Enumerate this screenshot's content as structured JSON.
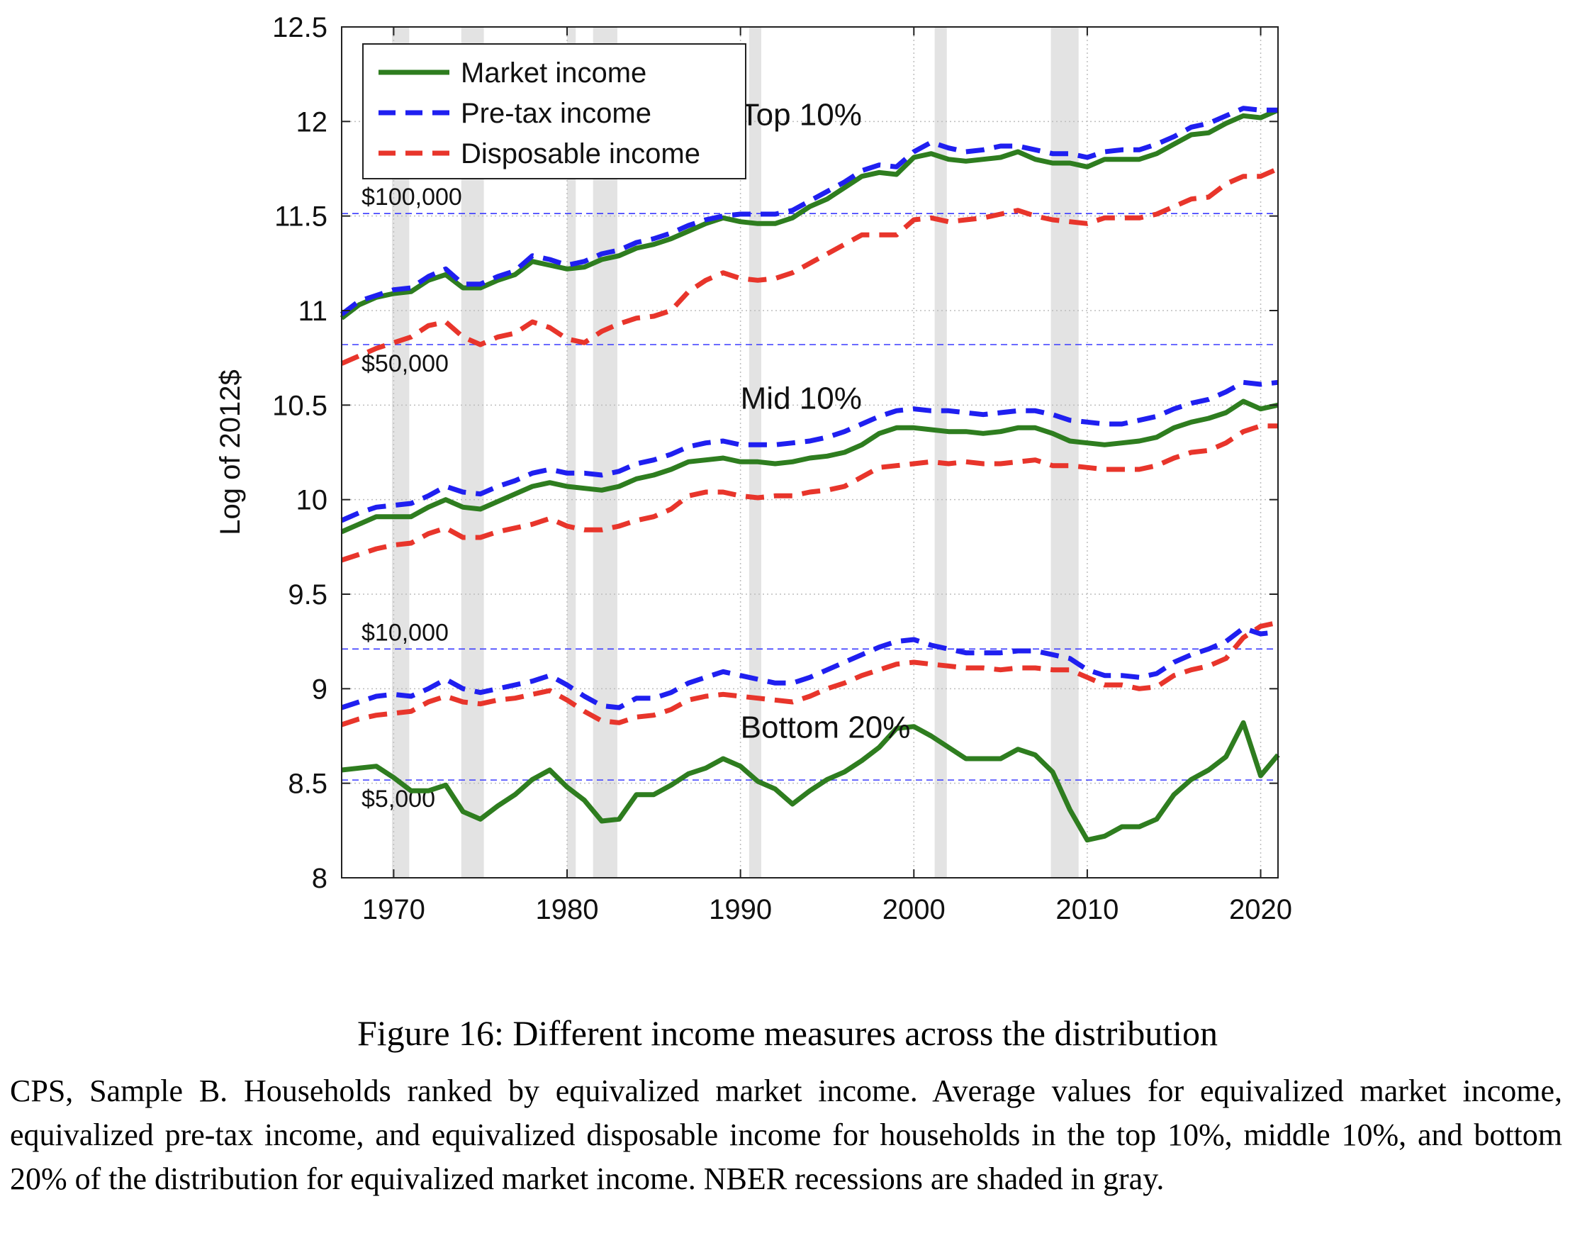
{
  "chart_data": {
    "type": "line",
    "title": "",
    "xlabel": "",
    "ylabel": "Log of 2012$",
    "xlim": [
      1967,
      2021
    ],
    "ylim": [
      8,
      12.5
    ],
    "x_ticks": [
      1970,
      1980,
      1990,
      2000,
      2010,
      2020
    ],
    "y_ticks": [
      8,
      8.5,
      9,
      9.5,
      10,
      10.5,
      11,
      11.5,
      12,
      12.5
    ],
    "y_tick_labels": [
      "8",
      "8.5",
      "9",
      "9.5",
      "10",
      "10.5",
      "11",
      "11.5",
      "12",
      "12.5"
    ],
    "grid": true,
    "legend_position": "top-left",
    "recessions": [
      [
        1969.9,
        1970.9
      ],
      [
        1973.9,
        1975.2
      ],
      [
        1980.0,
        1980.5
      ],
      [
        1981.5,
        1982.9
      ],
      [
        1990.5,
        1991.2
      ],
      [
        2001.2,
        2001.9
      ],
      [
        2007.9,
        2009.5
      ]
    ],
    "reference_lines": [
      {
        "label": "$100,000",
        "y": 11.513
      },
      {
        "label": "$50,000",
        "y": 10.82
      },
      {
        "label": "$10,000",
        "y": 9.21
      },
      {
        "label": "$5,000",
        "y": 8.517
      }
    ],
    "group_labels": [
      {
        "text": "Top 10%",
        "x": 1990,
        "y": 11.98
      },
      {
        "text": "Mid 10%",
        "x": 1990,
        "y": 10.48
      },
      {
        "text": "Bottom 20%",
        "x": 1990,
        "y": 8.74
      }
    ],
    "x": [
      1967,
      1968,
      1969,
      1970,
      1971,
      1972,
      1973,
      1974,
      1975,
      1976,
      1977,
      1978,
      1979,
      1980,
      1981,
      1982,
      1983,
      1984,
      1985,
      1986,
      1987,
      1988,
      1989,
      1990,
      1991,
      1992,
      1993,
      1994,
      1995,
      1996,
      1997,
      1998,
      1999,
      2000,
      2001,
      2002,
      2003,
      2004,
      2005,
      2006,
      2007,
      2008,
      2009,
      2010,
      2011,
      2012,
      2013,
      2014,
      2015,
      2016,
      2017,
      2018,
      2019,
      2020,
      2021
    ],
    "series": [
      {
        "name": "Market income",
        "group": "Top 10%",
        "color": "#2e7d1f",
        "style": "solid",
        "values": [
          10.96,
          11.03,
          11.07,
          11.09,
          11.1,
          11.16,
          11.19,
          11.12,
          11.12,
          11.16,
          11.19,
          11.26,
          11.24,
          11.22,
          11.23,
          11.27,
          11.29,
          11.33,
          11.35,
          11.38,
          11.42,
          11.46,
          11.49,
          11.47,
          11.46,
          11.46,
          11.49,
          11.55,
          11.59,
          11.65,
          11.71,
          11.73,
          11.72,
          11.81,
          11.83,
          11.8,
          11.79,
          11.8,
          11.81,
          11.84,
          11.8,
          11.78,
          11.78,
          11.76,
          11.8,
          11.8,
          11.8,
          11.83,
          11.88,
          11.93,
          11.94,
          11.99,
          12.03,
          12.02,
          12.06
        ]
      },
      {
        "name": "Pre-tax income",
        "group": "Top 10%",
        "color": "#1f1ff0",
        "style": "dashed",
        "values": [
          10.98,
          11.05,
          11.08,
          11.11,
          11.12,
          11.18,
          11.22,
          11.14,
          11.14,
          11.18,
          11.21,
          11.29,
          11.27,
          11.24,
          11.26,
          11.3,
          11.32,
          11.36,
          11.38,
          11.41,
          11.45,
          11.48,
          11.5,
          11.51,
          11.51,
          11.51,
          11.53,
          11.58,
          11.63,
          11.68,
          11.74,
          11.77,
          11.76,
          11.84,
          11.89,
          11.86,
          11.84,
          11.85,
          11.87,
          11.87,
          11.85,
          11.83,
          11.83,
          11.81,
          11.84,
          11.85,
          11.85,
          11.88,
          11.92,
          11.97,
          11.99,
          12.03,
          12.07,
          12.06,
          12.06
        ]
      },
      {
        "name": "Disposable income",
        "group": "Top 10%",
        "color": "#e8352b",
        "style": "dashed",
        "values": [
          10.72,
          10.76,
          10.8,
          10.83,
          10.86,
          10.92,
          10.94,
          10.86,
          10.82,
          10.86,
          10.88,
          10.94,
          10.91,
          10.85,
          10.83,
          10.89,
          10.93,
          10.96,
          10.97,
          11.0,
          11.1,
          11.16,
          11.2,
          11.17,
          11.16,
          11.17,
          11.2,
          11.25,
          11.3,
          11.35,
          11.4,
          11.4,
          11.4,
          11.48,
          11.49,
          11.47,
          11.48,
          11.49,
          11.51,
          11.53,
          11.5,
          11.48,
          11.47,
          11.46,
          11.49,
          11.49,
          11.49,
          11.51,
          11.55,
          11.59,
          11.6,
          11.67,
          11.71,
          11.71,
          11.75
        ]
      },
      {
        "name": "Market income",
        "group": "Mid 10%",
        "color": "#2e7d1f",
        "style": "solid",
        "values": [
          9.83,
          9.87,
          9.91,
          9.91,
          9.91,
          9.96,
          10.0,
          9.96,
          9.95,
          9.99,
          10.03,
          10.07,
          10.09,
          10.07,
          10.06,
          10.05,
          10.07,
          10.11,
          10.13,
          10.16,
          10.2,
          10.21,
          10.22,
          10.2,
          10.2,
          10.19,
          10.2,
          10.22,
          10.23,
          10.25,
          10.29,
          10.35,
          10.38,
          10.38,
          10.37,
          10.36,
          10.36,
          10.35,
          10.36,
          10.38,
          10.38,
          10.35,
          10.31,
          10.3,
          10.29,
          10.3,
          10.31,
          10.33,
          10.38,
          10.41,
          10.43,
          10.46,
          10.52,
          10.48,
          10.5
        ]
      },
      {
        "name": "Pre-tax income",
        "group": "Mid 10%",
        "color": "#1f1ff0",
        "style": "dashed",
        "values": [
          9.89,
          9.93,
          9.96,
          9.97,
          9.98,
          10.02,
          10.07,
          10.04,
          10.03,
          10.07,
          10.1,
          10.14,
          10.16,
          10.14,
          10.14,
          10.13,
          10.15,
          10.19,
          10.21,
          10.24,
          10.28,
          10.3,
          10.31,
          10.29,
          10.29,
          10.29,
          10.3,
          10.31,
          10.33,
          10.36,
          10.4,
          10.44,
          10.47,
          10.48,
          10.47,
          10.47,
          10.46,
          10.45,
          10.46,
          10.47,
          10.47,
          10.45,
          10.42,
          10.41,
          10.4,
          10.4,
          10.42,
          10.44,
          10.48,
          10.51,
          10.53,
          10.57,
          10.62,
          10.61,
          10.62
        ]
      },
      {
        "name": "Disposable income",
        "group": "Mid 10%",
        "color": "#e8352b",
        "style": "dashed",
        "values": [
          9.68,
          9.71,
          9.74,
          9.76,
          9.77,
          9.82,
          9.85,
          9.8,
          9.8,
          9.83,
          9.85,
          9.87,
          9.9,
          9.86,
          9.84,
          9.84,
          9.86,
          9.89,
          9.91,
          9.95,
          10.02,
          10.04,
          10.04,
          10.02,
          10.01,
          10.02,
          10.02,
          10.04,
          10.05,
          10.07,
          10.12,
          10.17,
          10.18,
          10.19,
          10.2,
          10.19,
          10.2,
          10.19,
          10.19,
          10.2,
          10.21,
          10.18,
          10.18,
          10.17,
          10.16,
          10.16,
          10.16,
          10.18,
          10.22,
          10.25,
          10.26,
          10.3,
          10.36,
          10.39,
          10.39
        ]
      },
      {
        "name": "Market income",
        "group": "Bottom 20%",
        "color": "#2e7d1f",
        "style": "solid",
        "values": [
          8.57,
          8.58,
          8.59,
          8.53,
          8.46,
          8.46,
          8.49,
          8.35,
          8.31,
          8.38,
          8.44,
          8.52,
          8.57,
          8.48,
          8.41,
          8.3,
          8.31,
          8.44,
          8.44,
          8.49,
          8.55,
          8.58,
          8.63,
          8.59,
          8.51,
          8.47,
          8.39,
          8.46,
          8.52,
          8.56,
          8.62,
          8.69,
          8.79,
          8.8,
          8.75,
          8.69,
          8.63,
          8.63,
          8.63,
          8.68,
          8.65,
          8.56,
          8.36,
          8.2,
          8.22,
          8.27,
          8.27,
          8.31,
          8.44,
          8.52,
          8.57,
          8.64,
          8.82,
          8.54,
          8.65
        ]
      },
      {
        "name": "Pre-tax income",
        "group": "Bottom 20%",
        "color": "#1f1ff0",
        "style": "dashed",
        "values": [
          8.9,
          8.93,
          8.96,
          8.97,
          8.96,
          9.0,
          9.05,
          9.0,
          8.98,
          9.0,
          9.02,
          9.04,
          9.07,
          9.02,
          8.96,
          8.91,
          8.9,
          8.95,
          8.95,
          8.98,
          9.03,
          9.06,
          9.09,
          9.07,
          9.05,
          9.03,
          9.03,
          9.06,
          9.1,
          9.14,
          9.18,
          9.22,
          9.25,
          9.26,
          9.23,
          9.21,
          9.19,
          9.19,
          9.19,
          9.2,
          9.2,
          9.18,
          9.16,
          9.1,
          9.07,
          9.07,
          9.06,
          9.08,
          9.14,
          9.18,
          9.21,
          9.25,
          9.32,
          9.29,
          9.3
        ]
      },
      {
        "name": "Disposable income",
        "group": "Bottom 20%",
        "color": "#e8352b",
        "style": "dashed",
        "values": [
          8.81,
          8.84,
          8.86,
          8.87,
          8.88,
          8.93,
          8.96,
          8.93,
          8.92,
          8.94,
          8.95,
          8.97,
          8.99,
          8.94,
          8.88,
          8.83,
          8.82,
          8.85,
          8.86,
          8.89,
          8.94,
          8.96,
          8.97,
          8.96,
          8.95,
          8.94,
          8.93,
          8.96,
          9.0,
          9.03,
          9.07,
          9.1,
          9.13,
          9.14,
          9.13,
          9.12,
          9.11,
          9.11,
          9.1,
          9.11,
          9.11,
          9.1,
          9.1,
          9.06,
          9.02,
          9.02,
          9.0,
          9.01,
          9.07,
          9.1,
          9.12,
          9.16,
          9.27,
          9.33,
          9.35
        ]
      }
    ],
    "legend": [
      {
        "label": "Market income",
        "color": "#2e7d1f",
        "style": "solid"
      },
      {
        "label": "Pre-tax income",
        "color": "#1f1ff0",
        "style": "dashed"
      },
      {
        "label": "Disposable income",
        "color": "#e8352b",
        "style": "dashed"
      }
    ]
  },
  "caption": {
    "title": "Figure 16: Different income measures across the distribution",
    "text": "CPS, Sample B. Households ranked by equivalized market income. Average values for equivalized market income, equivalized pre-tax income, and equivalized disposable income for households in the top 10%, middle 10%, and bottom 20% of the distribution for equivalized market income. NBER recessions are shaded in gray."
  }
}
